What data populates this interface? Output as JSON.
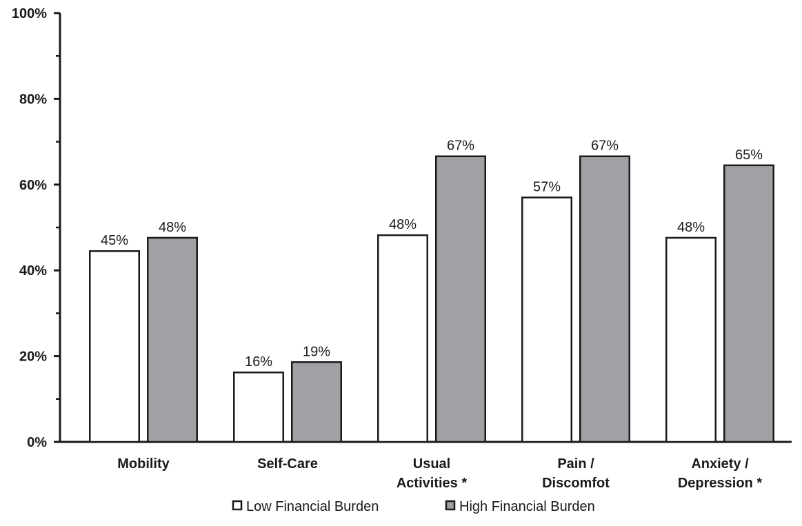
{
  "chart_data": {
    "type": "bar",
    "title": "",
    "xlabel": "",
    "ylabel": "",
    "ylim": [
      0,
      100
    ],
    "yticks": [
      0,
      20,
      40,
      60,
      80,
      100
    ],
    "ytick_labels": [
      "0%",
      "20%",
      "40%",
      "60%",
      "80%",
      "100%"
    ],
    "categories": [
      [
        "Mobility"
      ],
      [
        "Self-Care"
      ],
      [
        "Usual",
        "Activities *"
      ],
      [
        "Pain /",
        "Discomfot"
      ],
      [
        "Anxiety /",
        "Depression *"
      ]
    ],
    "series": [
      {
        "name": "Low Financial Burden",
        "values": [
          44.5,
          16.2,
          48.2,
          57.0,
          47.6
        ],
        "labels": [
          "45%",
          "16%",
          "48%",
          "57%",
          "48%"
        ],
        "color": "#ffffff"
      },
      {
        "name": "High Financial Burden",
        "values": [
          47.6,
          18.6,
          66.6,
          66.6,
          64.5
        ],
        "labels": [
          "48%",
          "19%",
          "67%",
          "67%",
          "65%"
        ],
        "color": "#a0a1a5"
      }
    ],
    "grid": false,
    "legend_position": "bottom-center"
  }
}
